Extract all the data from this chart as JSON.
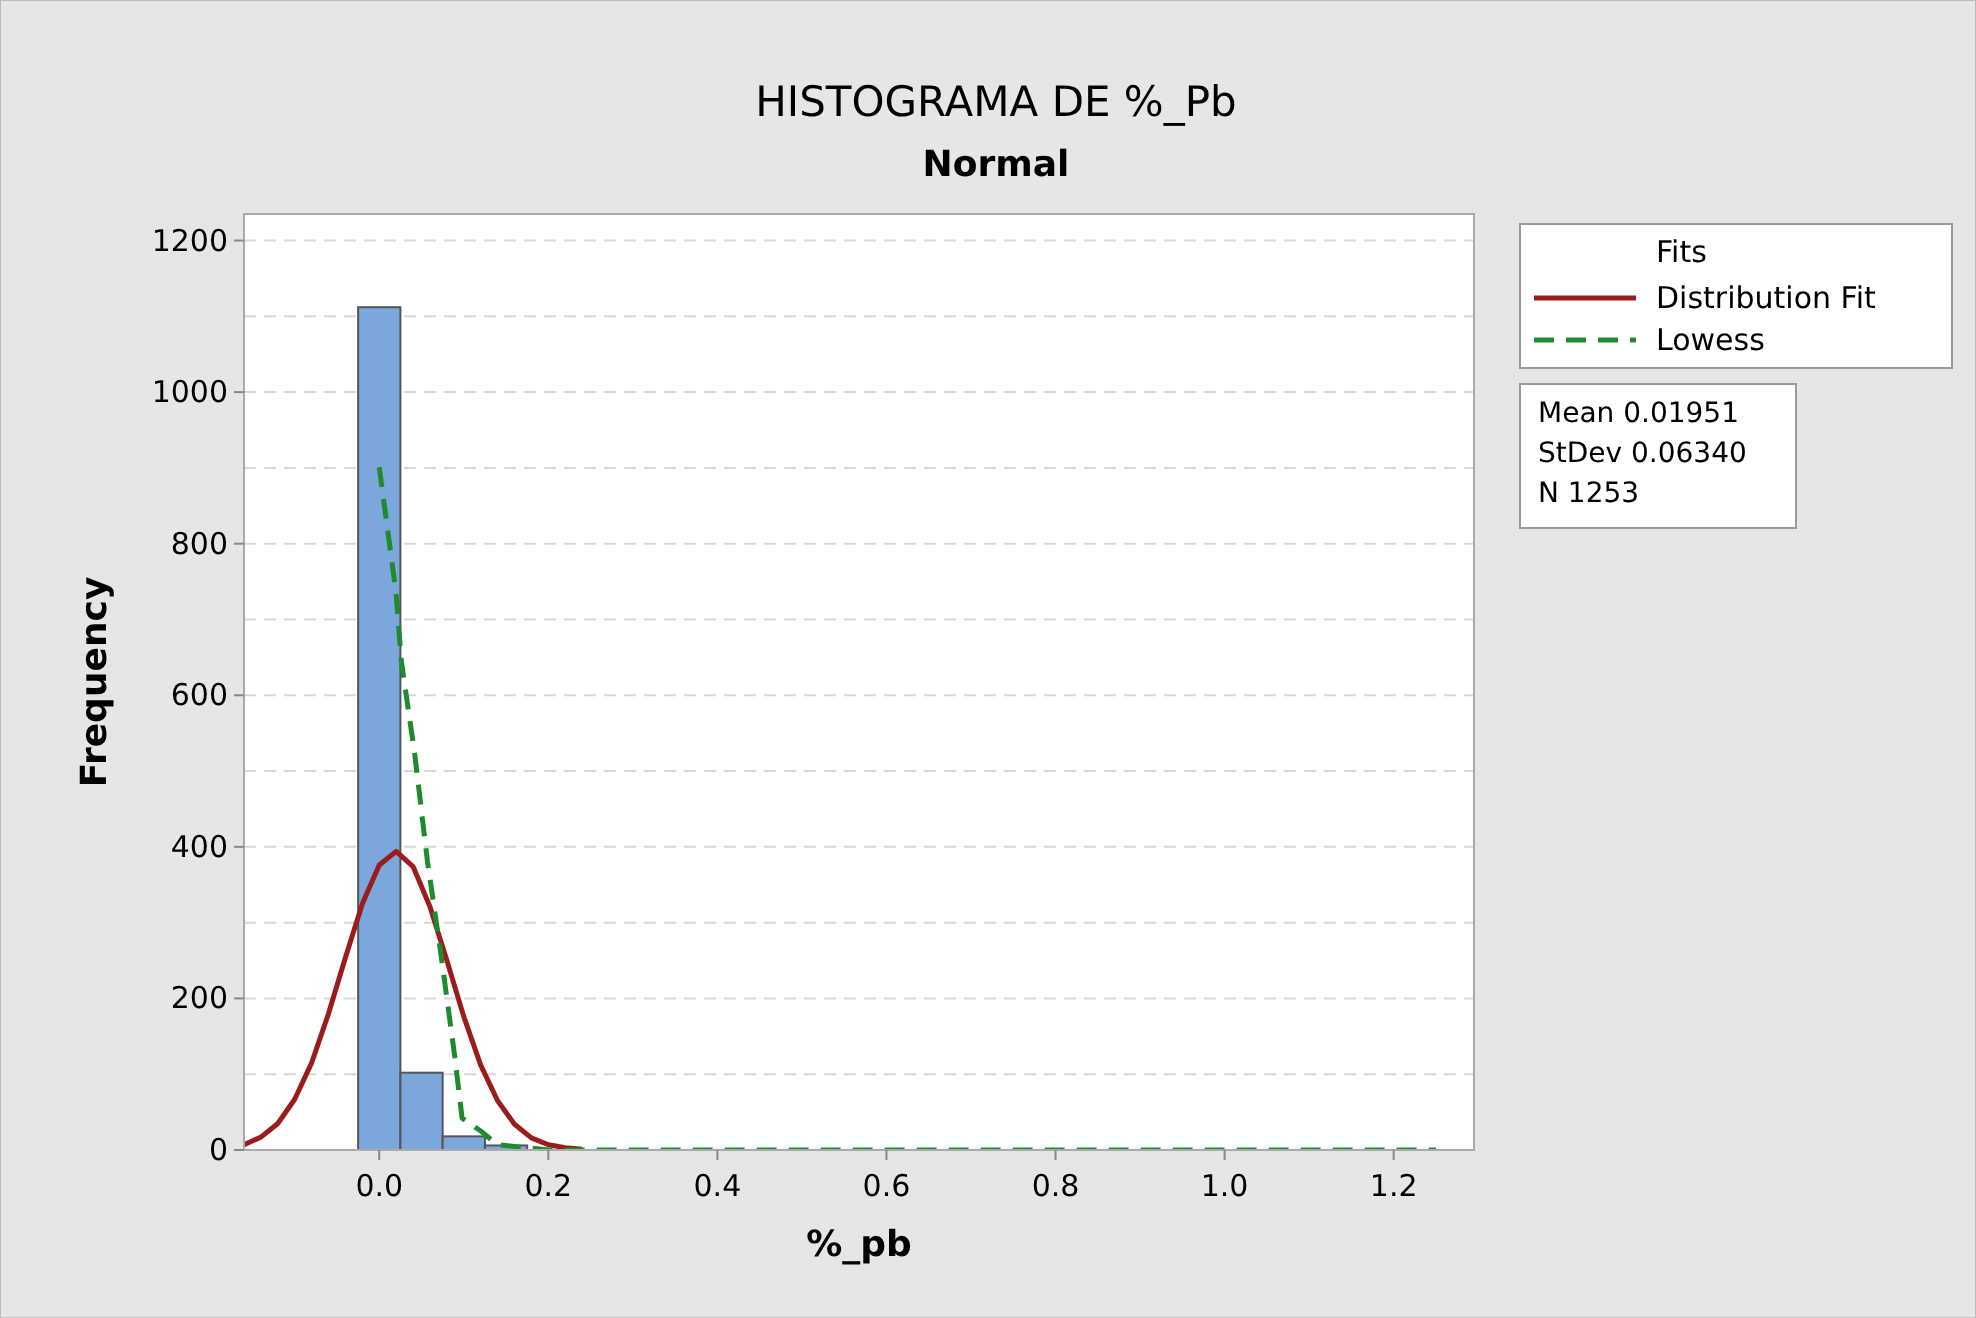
{
  "chart_data": {
    "type": "histogram",
    "title": "HISTOGRAMA DE %_Pb",
    "subtitle": "Normal",
    "xlabel": "%_pb",
    "ylabel": "Frequency",
    "legend_title": "Fits",
    "legend": "top right",
    "grid": "y",
    "color": "#7ba7dc",
    "bins": [
      -0.025,
      0.025,
      0.075,
      0.125,
      0.175,
      0.225,
      0.275,
      0.325,
      0.375,
      0.425,
      0.475,
      0.525,
      0.575,
      0.625,
      0.675,
      0.725,
      0.775,
      0.825,
      0.875,
      0.925,
      0.975,
      1.025,
      1.075,
      1.125,
      1.175,
      1.225,
      1.275
    ],
    "values": [
      1112,
      102,
      18,
      6,
      0,
      0,
      0,
      0,
      0,
      0,
      0,
      0,
      0,
      0,
      0,
      0,
      0,
      0,
      0,
      0,
      0,
      0,
      0,
      0,
      0,
      0
    ],
    "series": [
      {
        "name": "Distribution Fit",
        "type": "line",
        "color": "#9b1c1c",
        "line_style": "solid",
        "x": [
          -0.16,
          -0.14,
          -0.12,
          -0.1,
          -0.08,
          -0.06,
          -0.04,
          -0.02,
          0,
          0.02,
          0.04,
          0.06,
          0.08,
          0.1,
          0.12,
          0.14,
          0.16,
          0.18,
          0.2,
          0.22,
          0.24
        ],
        "values": [
          7,
          17,
          35,
          67,
          115,
          180,
          254,
          325,
          376,
          394,
          374,
          321,
          250,
          176,
          112,
          65,
          34,
          16,
          7,
          3,
          1
        ]
      },
      {
        "name": "Lowess",
        "type": "line",
        "color": "#1e8c2e",
        "line_style": "dashed",
        "x": [
          0,
          0.02,
          0.026,
          0.042,
          0.057,
          0.073,
          0.089,
          0.098,
          0.12,
          0.14,
          0.2,
          0.4,
          0.6,
          0.8,
          1.0,
          1.25
        ],
        "values": [
          901,
          734,
          646,
          522,
          381,
          258,
          126,
          42,
          25,
          7,
          0,
          0,
          0,
          0,
          0,
          0
        ]
      }
    ],
    "xlim": [
      -0.16,
      1.295
    ],
    "ylim": [
      0,
      1235
    ],
    "xticks": [
      {
        "value": 0,
        "label": "0.0"
      },
      0.2,
      0.4,
      0.6,
      0.8,
      {
        "value": 1,
        "label": "1.0"
      },
      1.2
    ],
    "yticks": [
      0,
      {
        "value": 100,
        "label": null
      },
      200,
      {
        "value": 300,
        "label": null
      },
      400,
      {
        "value": 500,
        "label": null
      },
      600,
      {
        "value": 700,
        "label": null
      },
      800,
      {
        "value": 900,
        "label": null
      },
      1000,
      {
        "value": 1100,
        "label": null
      },
      1200
    ],
    "annotations": [
      "Mean 0.01951",
      "StDev 0.06340",
      "N 1253"
    ]
  }
}
